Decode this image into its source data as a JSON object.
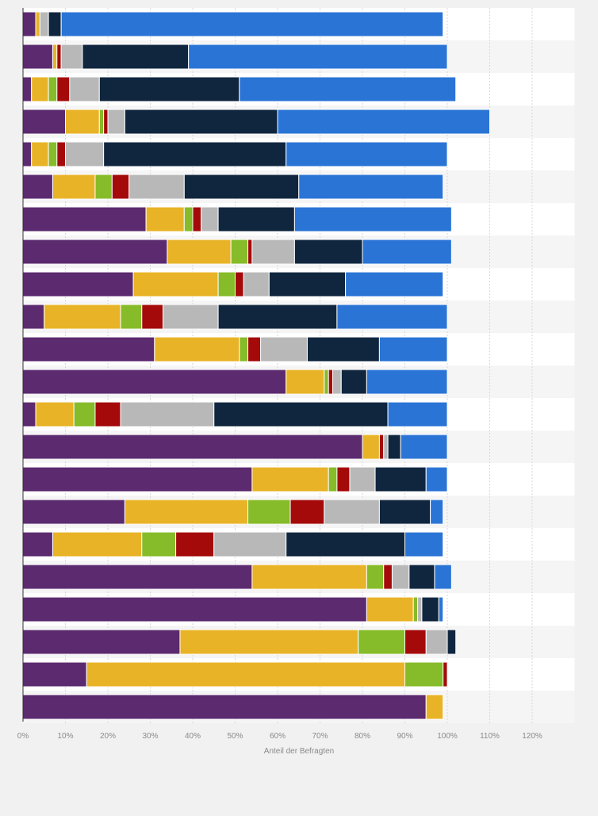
{
  "chart_data": {
    "type": "bar",
    "orientation": "horizontal",
    "stacked": true,
    "xlabel": "Anteil der Befragten",
    "x_ticks": [
      "0%",
      "10%",
      "20%",
      "30%",
      "40%",
      "50%",
      "60%",
      "70%",
      "80%",
      "90%",
      "100%",
      "110%",
      "120%"
    ],
    "xlim": [
      0,
      130
    ],
    "grid": true,
    "colors": [
      "#5b2a6f",
      "#e8b326",
      "#86bb29",
      "#a40a0a",
      "#b8b8b8",
      "#10263f",
      "#2a74d6"
    ],
    "bars": [
      [
        3,
        1,
        0,
        0,
        2,
        3,
        90
      ],
      [
        7,
        1,
        0,
        1,
        5,
        25,
        61
      ],
      [
        2,
        4,
        2,
        3,
        7,
        33,
        51
      ],
      [
        10,
        8,
        1,
        1,
        4,
        36,
        50
      ],
      [
        2,
        4,
        2,
        2,
        9,
        43,
        38
      ],
      [
        7,
        10,
        4,
        4,
        13,
        27,
        34
      ],
      [
        29,
        9,
        2,
        2,
        4,
        18,
        37
      ],
      [
        34,
        15,
        4,
        1,
        10,
        16,
        21
      ],
      [
        26,
        20,
        4,
        2,
        6,
        18,
        23
      ],
      [
        5,
        18,
        5,
        5,
        13,
        28,
        26
      ],
      [
        31,
        20,
        2,
        3,
        11,
        17,
        16
      ],
      [
        62,
        9,
        1,
        1,
        2,
        6,
        19
      ],
      [
        3,
        9,
        5,
        6,
        22,
        41,
        14
      ],
      [
        80,
        4,
        0,
        1,
        1,
        3,
        11
      ],
      [
        54,
        18,
        2,
        3,
        6,
        12,
        5
      ],
      [
        24,
        29,
        10,
        8,
        13,
        12,
        3
      ],
      [
        7,
        21,
        8,
        9,
        17,
        28,
        9
      ],
      [
        54,
        27,
        4,
        2,
        4,
        6,
        4
      ],
      [
        81,
        11,
        1,
        0,
        1,
        4,
        1
      ],
      [
        37,
        42,
        11,
        5,
        5,
        2,
        0
      ],
      [
        15,
        75,
        9,
        1,
        0,
        0,
        0
      ],
      [
        95,
        4,
        0,
        0,
        0,
        0,
        0
      ]
    ]
  }
}
